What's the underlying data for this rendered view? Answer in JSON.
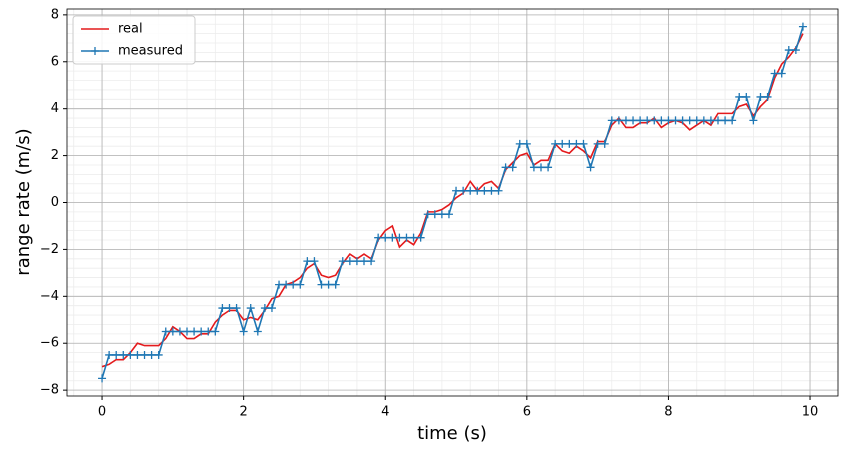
{
  "chart_data": {
    "type": "line",
    "xlabel": "time (s)",
    "ylabel": "range rate (m/s)",
    "x": [
      0,
      0.1,
      0.2,
      0.3,
      0.4,
      0.5,
      0.6,
      0.7,
      0.8,
      0.9,
      1,
      1.1,
      1.2,
      1.3,
      1.4,
      1.5,
      1.6,
      1.7,
      1.8,
      1.9,
      2,
      2.1,
      2.2,
      2.3,
      2.4,
      2.5,
      2.6,
      2.7,
      2.8,
      2.9,
      3,
      3.1,
      3.2,
      3.3,
      3.4,
      3.5,
      3.6,
      3.7,
      3.8,
      3.9,
      4,
      4.1,
      4.2,
      4.3,
      4.4,
      4.5,
      4.6,
      4.7,
      4.8,
      4.9,
      5,
      5.1,
      5.2,
      5.3,
      5.4,
      5.5,
      5.6,
      5.7,
      5.8,
      5.9,
      6,
      6.1,
      6.2,
      6.3,
      6.4,
      6.5,
      6.6,
      6.7,
      6.8,
      6.9,
      7,
      7.1,
      7.2,
      7.3,
      7.4,
      7.5,
      7.6,
      7.7,
      7.8,
      7.9,
      8,
      8.1,
      8.2,
      8.3,
      8.4,
      8.5,
      8.6,
      8.7,
      8.8,
      8.9,
      9,
      9.1,
      9.2,
      9.3,
      9.4,
      9.5,
      9.6,
      9.7,
      9.8,
      9.9
    ],
    "series": [
      {
        "name": "real",
        "color": "#e41a1c",
        "marker": null,
        "values": [
          -7.0,
          -6.9,
          -6.7,
          -6.7,
          -6.4,
          -6.0,
          -6.1,
          -6.1,
          -6.1,
          -5.8,
          -5.3,
          -5.5,
          -5.8,
          -5.8,
          -5.6,
          -5.6,
          -5.1,
          -4.8,
          -4.6,
          -4.6,
          -5.0,
          -4.9,
          -5.0,
          -4.6,
          -4.1,
          -4.0,
          -3.5,
          -3.4,
          -3.2,
          -2.8,
          -2.6,
          -3.1,
          -3.2,
          -3.1,
          -2.6,
          -2.2,
          -2.4,
          -2.2,
          -2.4,
          -1.6,
          -1.2,
          -1.0,
          -1.9,
          -1.6,
          -1.8,
          -1.3,
          -0.4,
          -0.4,
          -0.3,
          -0.1,
          0.2,
          0.4,
          0.9,
          0.5,
          0.8,
          0.9,
          0.6,
          1.4,
          1.7,
          2.0,
          2.1,
          1.6,
          1.8,
          1.8,
          2.5,
          2.2,
          2.1,
          2.4,
          2.2,
          1.9,
          2.6,
          2.6,
          3.3,
          3.6,
          3.2,
          3.2,
          3.4,
          3.4,
          3.6,
          3.2,
          3.4,
          3.5,
          3.4,
          3.1,
          3.3,
          3.5,
          3.3,
          3.8,
          3.8,
          3.8,
          4.1,
          4.2,
          3.7,
          4.1,
          4.4,
          5.3,
          5.9,
          6.2,
          6.6,
          7.2
        ]
      },
      {
        "name": "measured",
        "color": "#1f77b4",
        "marker": "+",
        "values": [
          -7.5,
          -6.5,
          -6.5,
          -6.5,
          -6.5,
          -6.5,
          -6.5,
          -6.5,
          -6.5,
          -5.5,
          -5.5,
          -5.5,
          -5.5,
          -5.5,
          -5.5,
          -5.5,
          -5.5,
          -4.5,
          -4.5,
          -4.5,
          -5.5,
          -4.5,
          -5.5,
          -4.5,
          -4.5,
          -3.5,
          -3.5,
          -3.5,
          -3.5,
          -2.5,
          -2.5,
          -3.5,
          -3.5,
          -3.5,
          -2.5,
          -2.5,
          -2.5,
          -2.5,
          -2.5,
          -1.5,
          -1.5,
          -1.5,
          -1.5,
          -1.5,
          -1.5,
          -1.5,
          -0.5,
          -0.5,
          -0.5,
          -0.5,
          0.5,
          0.5,
          0.5,
          0.5,
          0.5,
          0.5,
          0.5,
          1.5,
          1.5,
          2.5,
          2.5,
          1.5,
          1.5,
          1.5,
          2.5,
          2.5,
          2.5,
          2.5,
          2.5,
          1.5,
          2.5,
          2.5,
          3.5,
          3.5,
          3.5,
          3.5,
          3.5,
          3.5,
          3.5,
          3.5,
          3.5,
          3.5,
          3.5,
          3.5,
          3.5,
          3.5,
          3.5,
          3.5,
          3.5,
          3.5,
          4.5,
          4.5,
          3.5,
          4.5,
          4.5,
          5.5,
          5.5,
          6.5,
          6.5,
          7.5
        ]
      }
    ],
    "xlim": [
      -0.495,
      10.395
    ],
    "ylim": [
      -8.25,
      8.25
    ],
    "xticks": [
      0,
      2,
      4,
      6,
      8,
      10
    ],
    "yticks": [
      {
        "value": -8,
        "label": "−8"
      },
      {
        "value": -6,
        "label": "−6"
      },
      {
        "value": -4,
        "label": "−4"
      },
      {
        "value": -2,
        "label": "−2"
      },
      0,
      2,
      4,
      6,
      8
    ],
    "grid": true,
    "minor_grid": true,
    "legend": "upper left"
  }
}
